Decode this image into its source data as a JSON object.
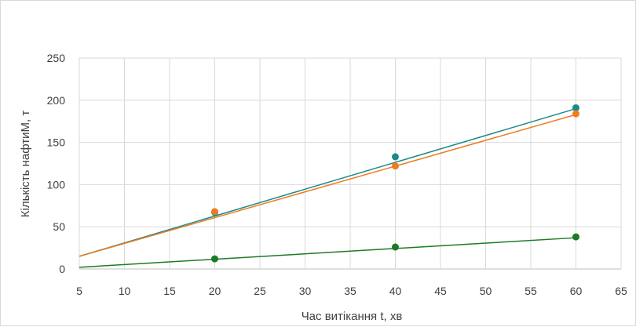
{
  "chart_data": {
    "type": "scatter",
    "title": "",
    "xlabel": "Час витікання t, хв",
    "ylabel": "Кількість нафтиМ, т",
    "xlim": [
      5,
      65
    ],
    "ylim": [
      0,
      250
    ],
    "x_ticks": [
      5,
      10,
      15,
      20,
      25,
      30,
      35,
      40,
      45,
      50,
      55,
      60,
      65
    ],
    "y_ticks": [
      0,
      50,
      100,
      150,
      200,
      250
    ],
    "grid": true,
    "legend": "none",
    "series": [
      {
        "color": "#1a8a8a",
        "points": [
          {
            "x": 20,
            "y": 67
          },
          {
            "x": 40,
            "y": 133
          },
          {
            "x": 60,
            "y": 191
          }
        ],
        "trendline": [
          {
            "x": 5,
            "y": 15
          },
          {
            "x": 60,
            "y": 190
          }
        ]
      },
      {
        "color": "#f07b1f",
        "points": [
          {
            "x": 20,
            "y": 68
          },
          {
            "x": 40,
            "y": 122
          },
          {
            "x": 60,
            "y": 184
          }
        ],
        "trendline": [
          {
            "x": 5,
            "y": 15
          },
          {
            "x": 60,
            "y": 183
          }
        ]
      },
      {
        "color": "#1d7a26",
        "points": [
          {
            "x": 20,
            "y": 12
          },
          {
            "x": 40,
            "y": 26
          },
          {
            "x": 60,
            "y": 38
          }
        ],
        "trendline": [
          {
            "x": 5,
            "y": 2
          },
          {
            "x": 60,
            "y": 37
          }
        ]
      }
    ]
  }
}
